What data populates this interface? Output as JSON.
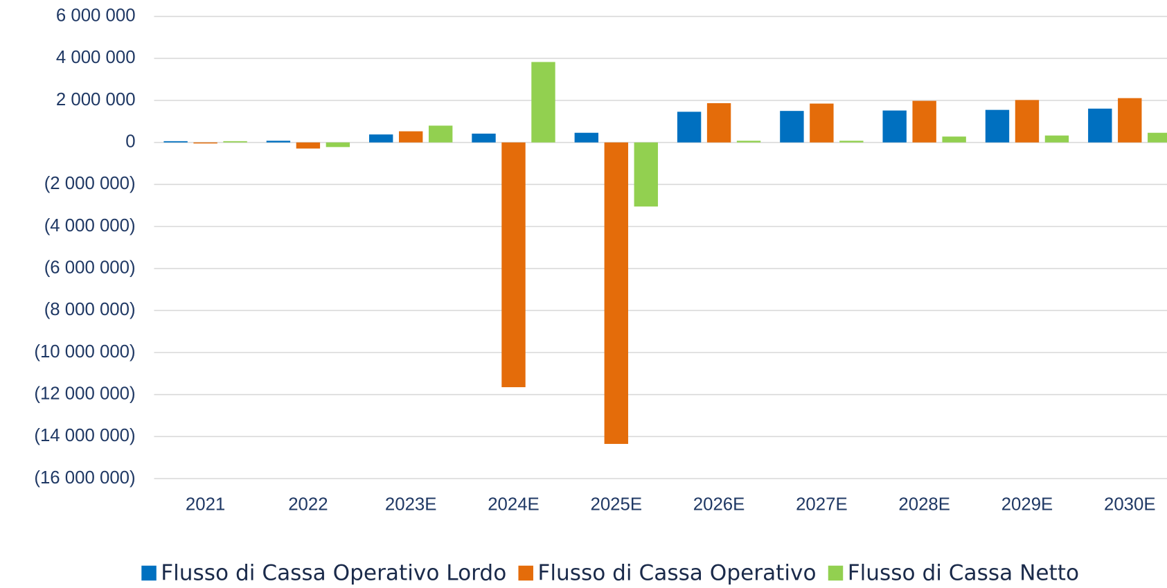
{
  "chart_data": {
    "type": "bar",
    "categories": [
      "2021",
      "2022",
      "2023E",
      "2024E",
      "2025E",
      "2026E",
      "2027E",
      "2028E",
      "2029E",
      "2030E"
    ],
    "series": [
      {
        "name": "Flusso di Cassa Operativo Lordo",
        "color": "#0070c0",
        "values": [
          60000,
          80000,
          380000,
          420000,
          460000,
          1460000,
          1500000,
          1520000,
          1550000,
          1610000
        ]
      },
      {
        "name": "Flusso di Cassa Operativo",
        "color": "#e46c0a",
        "values": [
          -50000,
          -290000,
          530000,
          -11650000,
          -14350000,
          1870000,
          1850000,
          1980000,
          2020000,
          2110000
        ]
      },
      {
        "name": "Flusso di Cassa Netto",
        "color": "#92d050",
        "values": [
          60000,
          -220000,
          800000,
          3830000,
          -3050000,
          80000,
          80000,
          280000,
          330000,
          460000
        ]
      }
    ],
    "ylim": [
      -16000000,
      6000000
    ],
    "yticks": [
      {
        "value": -16000000,
        "label": "(16 000 000)"
      },
      {
        "value": -14000000,
        "label": "(14 000 000)"
      },
      {
        "value": -12000000,
        "label": "(12 000 000)"
      },
      {
        "value": -10000000,
        "label": "(10 000 000)"
      },
      {
        "value": -8000000,
        "label": "(8 000 000)"
      },
      {
        "value": -6000000,
        "label": "(6 000 000)"
      },
      {
        "value": -4000000,
        "label": "(4 000 000)"
      },
      {
        "value": -2000000,
        "label": "(2 000 000)"
      },
      0,
      {
        "value": 2000000,
        "label": "2 000 000"
      },
      {
        "value": 4000000,
        "label": "4 000 000"
      },
      {
        "value": 6000000,
        "label": "6 000 000"
      }
    ],
    "grid": true,
    "legend": "bottom"
  }
}
